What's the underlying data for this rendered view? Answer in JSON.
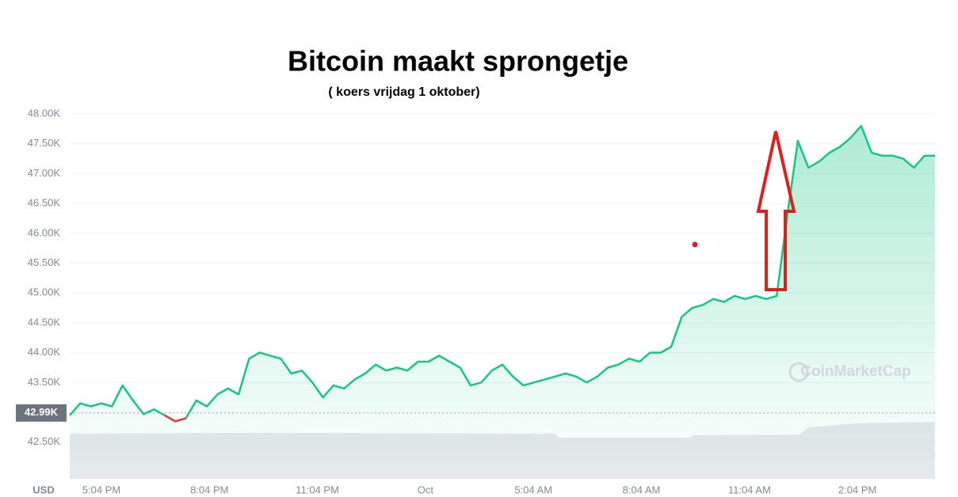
{
  "chart_data": {
    "type": "line",
    "title": "Bitcoin maakt sprongetje",
    "subtitle": "( koers vrijdag 1 oktober)",
    "currency_label": "USD",
    "watermark": "CoinMarketCap",
    "color": "#16c784",
    "down_color": "#ea3943",
    "baseline": {
      "value": 42.99,
      "label": "42.99K"
    },
    "ylim": [
      41.9,
      48
    ],
    "yticks": [
      {
        "value": 48,
        "label": "48.00K"
      },
      {
        "value": 47.5,
        "label": "47.50K"
      },
      {
        "value": 47,
        "label": "47.00K"
      },
      {
        "value": 46.5,
        "label": "46.50K"
      },
      {
        "value": 46,
        "label": "46.00K"
      },
      {
        "value": 45.5,
        "label": "45.50K"
      },
      {
        "value": 45,
        "label": "45.00K"
      },
      {
        "value": 44.5,
        "label": "44.50K"
      },
      {
        "value": 44,
        "label": "44.00K"
      },
      {
        "value": 43.5,
        "label": "43.50K"
      },
      {
        "value": 42.5,
        "label": "42.50K"
      }
    ],
    "grid": true,
    "x_tick_labels": [
      "5:04 PM",
      "8:04 PM",
      "11:04 PM",
      "Oct",
      "5:04 AM",
      "8:04 AM",
      "11:04 AM",
      "2:04 PM"
    ],
    "values": [
      42.95,
      43.15,
      43.1,
      43.15,
      43.1,
      43.45,
      43.2,
      42.97,
      43.05,
      42.95,
      42.85,
      42.9,
      43.2,
      43.1,
      43.3,
      43.4,
      43.3,
      43.9,
      44.0,
      43.95,
      43.9,
      43.65,
      43.7,
      43.5,
      43.25,
      43.45,
      43.4,
      43.55,
      43.65,
      43.8,
      43.7,
      43.75,
      43.7,
      43.85,
      43.85,
      43.95,
      43.85,
      43.75,
      43.45,
      43.5,
      43.7,
      43.8,
      43.6,
      43.45,
      43.5,
      43.55,
      43.6,
      43.65,
      43.6,
      43.5,
      43.6,
      43.75,
      43.8,
      43.9,
      43.85,
      44.0,
      44.0,
      44.1,
      44.6,
      44.75,
      44.8,
      44.9,
      44.85,
      44.95,
      44.9,
      44.95,
      44.9,
      44.95,
      46.3,
      47.55,
      47.1,
      47.2,
      47.35,
      47.45,
      47.6,
      47.8,
      47.35,
      47.3,
      47.3,
      47.25,
      47.1,
      47.3,
      47.3
    ]
  }
}
